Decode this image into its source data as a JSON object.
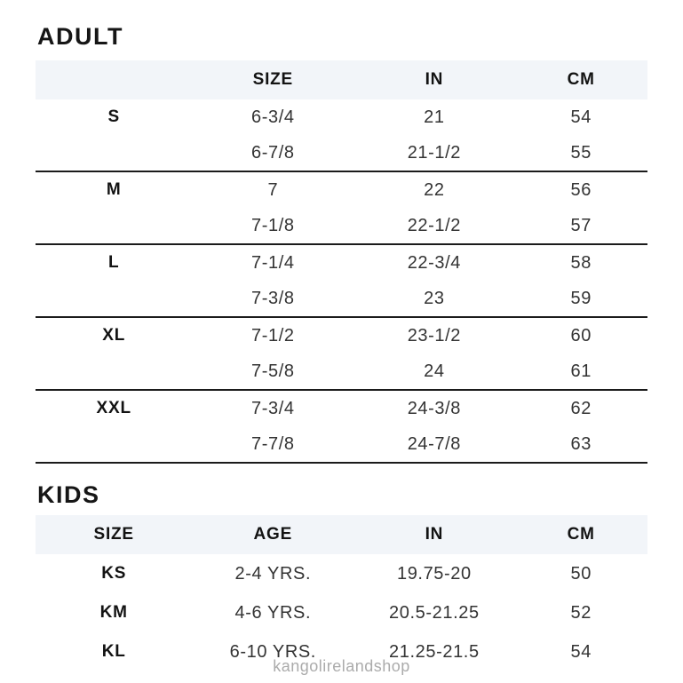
{
  "adult": {
    "title": "ADULT",
    "headers": {
      "col1": "",
      "size": "SIZE",
      "in": "IN",
      "cm": "CM"
    },
    "rows": [
      {
        "label": "S",
        "size": "6-3/4",
        "in": "21",
        "cm": "54"
      },
      {
        "label": "",
        "size": "6-7/8",
        "in": "21-1/2",
        "cm": "55"
      },
      {
        "label": "M",
        "size": "7",
        "in": "22",
        "cm": "56"
      },
      {
        "label": "",
        "size": "7-1/8",
        "in": "22-1/2",
        "cm": "57"
      },
      {
        "label": "L",
        "size": "7-1/4",
        "in": "22-3/4",
        "cm": "58"
      },
      {
        "label": "",
        "size": "7-3/8",
        "in": "23",
        "cm": "59"
      },
      {
        "label": "XL",
        "size": "7-1/2",
        "in": "23-1/2",
        "cm": "60"
      },
      {
        "label": "",
        "size": "7-5/8",
        "in": "24",
        "cm": "61"
      },
      {
        "label": "XXL",
        "size": "7-3/4",
        "in": "24-3/8",
        "cm": "62"
      },
      {
        "label": "",
        "size": "7-7/8",
        "in": "24-7/8",
        "cm": "63"
      }
    ]
  },
  "kids": {
    "title": "KIDS",
    "headers": {
      "size": "SIZE",
      "age": "AGE",
      "in": "IN",
      "cm": "CM"
    },
    "rows": [
      {
        "size": "KS",
        "age": "2-4 YRS.",
        "in": "19.75-20",
        "cm": "50"
      },
      {
        "size": "KM",
        "age": "4-6 YRS.",
        "in": "20.5-21.25",
        "cm": "52"
      },
      {
        "size": "KL",
        "age": "6-10 YRS.",
        "in": "21.25-21.5",
        "cm": "54"
      }
    ]
  },
  "watermark": "kangolirelandshop",
  "colors": {
    "header_band": "#f2f5f9",
    "divider": "#1b1b1b",
    "text": "#333333",
    "heading": "#161616",
    "watermark": "#ababab"
  }
}
